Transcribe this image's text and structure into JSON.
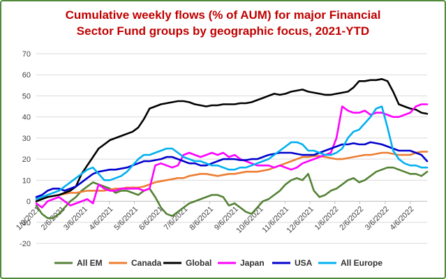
{
  "chart_data": {
    "type": "line",
    "title": "Cumulative weekly flows (% of AUM) for major Financial Sector Fund groups by geographic focus, 2021-YTD",
    "title_lines": [
      "Cumulative weekly flows (% of AUM) for major Financial",
      "Sector Fund groups by geographic focus, 2021-YTD"
    ],
    "xlabel": "",
    "ylabel": "",
    "ylim": [
      -20,
      70
    ],
    "yticks": [
      -20,
      -10,
      0,
      10,
      20,
      30,
      40,
      50,
      60,
      70
    ],
    "x_tick_labels": [
      "1/6/2021",
      "2/6/2021",
      "3/6/2021",
      "4/6/2021",
      "5/6/2021",
      "6/6/2021",
      "7/6/2021",
      "8/6/2021",
      "9/6/2021",
      "10/6/2021",
      "11/6/2021",
      "12/6/2021",
      "1/6/2022",
      "2/6/2022",
      "3/6/2022",
      "4/6/2022"
    ],
    "x_tick_weeks": [
      0,
      4.4,
      8.4,
      12.9,
      17.3,
      21.7,
      26.1,
      30.6,
      35,
      39.4,
      43.9,
      48.3,
      52.7,
      57.1,
      61.6,
      66
    ],
    "x_range_weeks": [
      0,
      69
    ],
    "grid": true,
    "legend_position": "bottom",
    "series": [
      {
        "name": "All EM",
        "color": "#548235",
        "x": [
          0,
          1,
          2,
          3,
          4,
          5,
          6,
          7,
          8,
          9,
          10,
          11,
          12,
          13,
          14,
          15,
          16,
          17,
          18,
          19,
          20,
          21,
          22,
          23,
          24,
          25,
          26,
          27,
          28,
          29,
          30,
          31,
          32,
          33,
          34,
          35,
          36,
          37,
          38,
          39,
          40,
          41,
          42,
          43,
          44,
          45,
          46,
          47,
          48,
          49,
          50,
          51,
          52,
          53,
          54,
          55,
          56,
          57,
          58,
          59,
          60,
          61,
          62,
          63,
          64,
          65,
          66,
          67,
          68,
          69
        ],
        "y": [
          -2,
          -6,
          -8,
          -8,
          -6,
          -3,
          0,
          2,
          5,
          7,
          9,
          8,
          7,
          6,
          4,
          5,
          5,
          4,
          3,
          5,
          6,
          2,
          -3,
          -6,
          -7,
          -5,
          -3,
          -1,
          0,
          1,
          2,
          3,
          3,
          2,
          -2,
          -1,
          -3,
          -5,
          -6,
          -3,
          0,
          1,
          3,
          5,
          8,
          10,
          11,
          10,
          13,
          5,
          2,
          3,
          5,
          6,
          8,
          10,
          11,
          9,
          10,
          12,
          14,
          15,
          16,
          16,
          15,
          14,
          13,
          13,
          12,
          14
        ]
      },
      {
        "name": "Canada",
        "color": "#ed7d31",
        "x": [
          0,
          1,
          2,
          3,
          4,
          5,
          6,
          7,
          8,
          9,
          10,
          11,
          12,
          13,
          14,
          15,
          16,
          17,
          18,
          19,
          20,
          21,
          22,
          23,
          24,
          25,
          26,
          27,
          28,
          29,
          30,
          31,
          32,
          33,
          34,
          35,
          36,
          37,
          38,
          39,
          40,
          41,
          42,
          43,
          44,
          45,
          46,
          47,
          48,
          49,
          50,
          51,
          52,
          53,
          54,
          55,
          56,
          57,
          58,
          59,
          60,
          61,
          62,
          63,
          64,
          65,
          66,
          67,
          68,
          69
        ],
        "y": [
          1,
          1.5,
          2,
          2.5,
          3,
          3.5,
          4,
          4,
          4.5,
          5,
          5,
          5,
          5,
          5.5,
          6,
          6,
          6.5,
          6.5,
          6.5,
          7,
          8,
          9,
          9.5,
          10,
          10.5,
          11,
          11,
          12,
          12.5,
          13,
          13,
          12.5,
          12,
          12.5,
          13,
          13,
          13.5,
          14,
          14,
          14,
          14.5,
          15,
          16,
          17,
          18,
          19,
          20,
          21,
          21,
          21.5,
          21.5,
          21,
          20.5,
          20,
          20,
          20.5,
          21,
          21.5,
          22,
          22,
          22.5,
          23,
          23,
          22.5,
          22,
          22,
          22,
          23,
          23.5,
          23.5
        ]
      },
      {
        "name": "Global",
        "color": "#000000",
        "x": [
          0,
          1,
          2,
          3,
          4,
          5,
          6,
          7,
          8,
          9,
          10,
          11,
          12,
          13,
          14,
          15,
          16,
          17,
          18,
          19,
          20,
          21,
          22,
          23,
          24,
          25,
          26,
          27,
          28,
          29,
          30,
          31,
          32,
          33,
          34,
          35,
          36,
          37,
          38,
          39,
          40,
          41,
          42,
          43,
          44,
          45,
          46,
          47,
          48,
          49,
          50,
          51,
          52,
          53,
          54,
          55,
          56,
          57,
          58,
          59,
          60,
          61,
          62,
          63,
          64,
          65,
          66,
          67,
          68,
          69
        ],
        "y": [
          0,
          1,
          2,
          2.5,
          3,
          4,
          5,
          7,
          13,
          17,
          21,
          25,
          27,
          29,
          30,
          31,
          32,
          33,
          35,
          39,
          44,
          45,
          46,
          46.5,
          47,
          47.5,
          47.5,
          47,
          46,
          45.5,
          45,
          45.5,
          45.5,
          46,
          46,
          46,
          46.5,
          46.5,
          47,
          48,
          49,
          50,
          51,
          50.5,
          51,
          52,
          52.5,
          53,
          52,
          51.5,
          51,
          50.5,
          50.5,
          51,
          51.5,
          52,
          54,
          57,
          57,
          57.5,
          57.5,
          58,
          57,
          52,
          46,
          45,
          44,
          43.5,
          42,
          41.5
        ]
      },
      {
        "name": "Japan",
        "color": "#ff00ff",
        "x": [
          0,
          1,
          2,
          3,
          4,
          5,
          6,
          7,
          8,
          9,
          10,
          11,
          12,
          13,
          14,
          15,
          16,
          17,
          18,
          19,
          20,
          21,
          22,
          23,
          24,
          25,
          26,
          27,
          28,
          29,
          30,
          31,
          32,
          33,
          34,
          35,
          36,
          37,
          38,
          39,
          40,
          41,
          42,
          43,
          44,
          45,
          46,
          47,
          48,
          49,
          50,
          51,
          52,
          53,
          54,
          55,
          56,
          57,
          58,
          59,
          60,
          61,
          62,
          63,
          64,
          65,
          66,
          67,
          68,
          69
        ],
        "y": [
          -1,
          -3,
          0,
          1,
          2,
          0,
          -2,
          -1,
          0,
          1,
          -1,
          8,
          6,
          5,
          5,
          6,
          6,
          6,
          6,
          5,
          6,
          17,
          18,
          17,
          16,
          17,
          22,
          23,
          22,
          21,
          22,
          23,
          22,
          23,
          21,
          22,
          20,
          19,
          18,
          17,
          17,
          17,
          16,
          17,
          16,
          15,
          16,
          18,
          19,
          20,
          21,
          22,
          23,
          30,
          45,
          43,
          42,
          42,
          43,
          41,
          42,
          42,
          41,
          40,
          40,
          41,
          42,
          45,
          46,
          46
        ]
      },
      {
        "name": "USA",
        "color": "#0000cc",
        "x": [
          0,
          1,
          2,
          3,
          4,
          5,
          6,
          7,
          8,
          9,
          10,
          11,
          12,
          13,
          14,
          15,
          16,
          17,
          18,
          19,
          20,
          21,
          22,
          23,
          24,
          25,
          26,
          27,
          28,
          29,
          30,
          31,
          32,
          33,
          34,
          35,
          36,
          37,
          38,
          39,
          40,
          41,
          42,
          43,
          44,
          45,
          46,
          47,
          48,
          49,
          50,
          51,
          52,
          53,
          54,
          55,
          56,
          57,
          58,
          59,
          60,
          61,
          62,
          63,
          64,
          65,
          66,
          67,
          68,
          69
        ],
        "y": [
          2,
          3,
          5,
          6,
          6,
          5,
          6,
          7,
          9,
          11,
          13,
          14,
          14.5,
          15,
          15,
          15.5,
          16,
          17,
          18,
          19,
          19,
          19.5,
          20,
          21,
          21,
          20,
          19,
          18,
          18,
          17,
          17,
          18,
          19,
          20,
          20,
          20,
          19.5,
          19.5,
          20,
          20,
          21,
          22,
          22.5,
          23,
          23,
          23,
          22.5,
          22,
          22,
          22,
          23,
          24,
          25,
          26,
          27,
          27,
          27.5,
          27,
          27,
          28,
          27.5,
          27,
          26,
          25,
          24,
          24,
          24,
          23,
          22,
          19
        ]
      },
      {
        "name": "All Europe",
        "color": "#00b0f0",
        "x": [
          0,
          1,
          2,
          3,
          4,
          5,
          6,
          7,
          8,
          9,
          10,
          11,
          12,
          13,
          14,
          15,
          16,
          17,
          18,
          19,
          20,
          21,
          22,
          23,
          24,
          25,
          26,
          27,
          28,
          29,
          30,
          31,
          32,
          33,
          34,
          35,
          36,
          37,
          38,
          39,
          40,
          41,
          42,
          43,
          44,
          45,
          46,
          47,
          48,
          49,
          50,
          51,
          52,
          53,
          54,
          55,
          56,
          57,
          58,
          59,
          60,
          61,
          62,
          63,
          64,
          65,
          66,
          67,
          68,
          69
        ],
        "y": [
          1,
          2,
          3,
          4,
          5,
          7,
          9,
          11,
          13,
          15,
          16,
          13,
          10,
          10,
          11,
          12,
          14,
          17,
          20,
          22,
          22,
          23,
          24,
          25,
          25,
          23,
          21,
          20,
          19,
          19,
          18,
          17,
          17,
          16,
          15,
          15,
          16,
          16,
          17,
          18,
          19,
          20,
          22,
          24,
          26,
          28,
          28,
          27,
          24,
          24,
          23,
          22,
          22,
          23,
          25,
          30,
          33,
          34,
          37,
          40,
          44,
          45,
          35,
          24,
          20,
          18,
          17,
          17,
          16,
          16
        ]
      }
    ]
  }
}
